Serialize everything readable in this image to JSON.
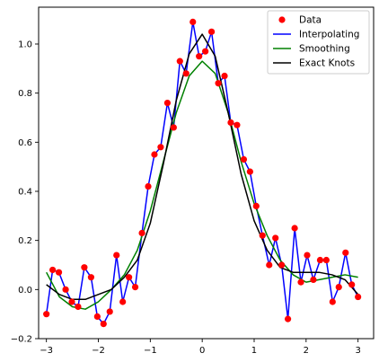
{
  "chart_data": {
    "type": "line",
    "title": "",
    "xlabel": "",
    "ylabel": "",
    "xlim": [
      -3.15,
      3.3
    ],
    "ylim": [
      -0.2,
      1.15
    ],
    "xticks": [
      -3,
      -2,
      -1,
      0,
      1,
      2,
      3
    ],
    "yticks": [
      -0.2,
      0.0,
      0.2,
      0.4,
      0.6,
      0.8,
      1.0
    ],
    "xtick_labels": [
      "−3",
      "−2",
      "−1",
      "0",
      "1",
      "2",
      "3"
    ],
    "ytick_labels": [
      "−0.2",
      "0.0",
      "0.2",
      "0.4",
      "0.6",
      "0.8",
      "1.0"
    ],
    "grid": false,
    "legend_position": "top-right",
    "data_points": {
      "name": "Data",
      "color": "#ff0000",
      "x": [
        -3.0,
        -2.88,
        -2.76,
        -2.63,
        -2.51,
        -2.39,
        -2.27,
        -2.14,
        -2.02,
        -1.9,
        -1.78,
        -1.65,
        -1.53,
        -1.41,
        -1.29,
        -1.16,
        -1.04,
        -0.92,
        -0.8,
        -0.67,
        -0.55,
        -0.43,
        -0.31,
        -0.18,
        -0.06,
        0.06,
        0.18,
        0.31,
        0.43,
        0.55,
        0.67,
        0.8,
        0.92,
        1.04,
        1.16,
        1.29,
        1.41,
        1.53,
        1.65,
        1.78,
        1.9,
        2.02,
        2.14,
        2.27,
        2.39,
        2.51,
        2.63,
        2.76,
        2.88,
        3.0
      ],
      "y": [
        -0.1,
        0.08,
        0.07,
        0.0,
        -0.05,
        -0.07,
        0.09,
        0.05,
        -0.11,
        -0.14,
        -0.09,
        0.14,
        -0.05,
        0.05,
        0.01,
        0.23,
        0.42,
        0.55,
        0.58,
        0.76,
        0.66,
        0.93,
        0.88,
        1.09,
        0.95,
        0.97,
        1.05,
        0.84,
        0.87,
        0.68,
        0.67,
        0.53,
        0.48,
        0.34,
        0.22,
        0.1,
        0.21,
        0.1,
        -0.12,
        0.25,
        0.03,
        0.14,
        0.04,
        0.12,
        0.12,
        -0.05,
        0.01,
        0.15,
        0.02,
        -0.03
      ]
    },
    "series": [
      {
        "name": "Interpolating",
        "color": "#0000ff",
        "x": [
          -3.0,
          -2.88,
          -2.76,
          -2.63,
          -2.51,
          -2.39,
          -2.27,
          -2.14,
          -2.02,
          -1.9,
          -1.78,
          -1.65,
          -1.53,
          -1.41,
          -1.29,
          -1.16,
          -1.04,
          -0.92,
          -0.8,
          -0.67,
          -0.55,
          -0.43,
          -0.31,
          -0.18,
          -0.06,
          0.06,
          0.18,
          0.31,
          0.43,
          0.55,
          0.67,
          0.8,
          0.92,
          1.04,
          1.16,
          1.29,
          1.41,
          1.53,
          1.65,
          1.78,
          1.9,
          2.02,
          2.14,
          2.27,
          2.39,
          2.51,
          2.63,
          2.76,
          2.88,
          3.0
        ],
        "y": [
          -0.1,
          0.08,
          0.07,
          0.0,
          -0.05,
          -0.07,
          0.09,
          0.05,
          -0.11,
          -0.14,
          -0.09,
          0.14,
          -0.05,
          0.05,
          0.01,
          0.23,
          0.42,
          0.55,
          0.58,
          0.76,
          0.66,
          0.93,
          0.88,
          1.09,
          0.95,
          0.97,
          1.05,
          0.84,
          0.87,
          0.68,
          0.67,
          0.53,
          0.48,
          0.34,
          0.22,
          0.1,
          0.21,
          0.1,
          -0.12,
          0.25,
          0.03,
          0.14,
          0.04,
          0.12,
          0.12,
          -0.05,
          0.01,
          0.15,
          0.02,
          -0.03
        ]
      },
      {
        "name": "Smoothing",
        "color": "#008000",
        "x": [
          -3.0,
          -2.75,
          -2.5,
          -2.25,
          -2.0,
          -1.75,
          -1.5,
          -1.25,
          -1.0,
          -0.75,
          -0.5,
          -0.25,
          0.0,
          0.25,
          0.5,
          0.75,
          1.0,
          1.25,
          1.5,
          1.75,
          2.0,
          2.25,
          2.5,
          2.75,
          3.0
        ],
        "y": [
          0.07,
          -0.03,
          -0.07,
          -0.08,
          -0.05,
          0.0,
          0.06,
          0.16,
          0.32,
          0.52,
          0.72,
          0.87,
          0.93,
          0.88,
          0.72,
          0.52,
          0.35,
          0.22,
          0.12,
          0.06,
          0.03,
          0.04,
          0.05,
          0.06,
          0.05
        ]
      },
      {
        "name": "Exact Knots",
        "color": "#000000",
        "x": [
          -3.0,
          -2.75,
          -2.5,
          -2.25,
          -2.0,
          -1.75,
          -1.5,
          -1.25,
          -1.0,
          -0.75,
          -0.5,
          -0.25,
          0.0,
          0.25,
          0.5,
          0.75,
          1.0,
          1.25,
          1.5,
          1.75,
          2.0,
          2.25,
          2.5,
          2.75,
          3.0
        ],
        "y": [
          0.02,
          -0.02,
          -0.04,
          -0.04,
          -0.02,
          0.0,
          0.05,
          0.12,
          0.27,
          0.51,
          0.77,
          0.96,
          1.04,
          0.95,
          0.72,
          0.47,
          0.28,
          0.16,
          0.09,
          0.07,
          0.07,
          0.07,
          0.06,
          0.04,
          -0.02
        ]
      }
    ],
    "legend": [
      "Data",
      "Interpolating",
      "Smoothing",
      "Exact Knots"
    ]
  }
}
